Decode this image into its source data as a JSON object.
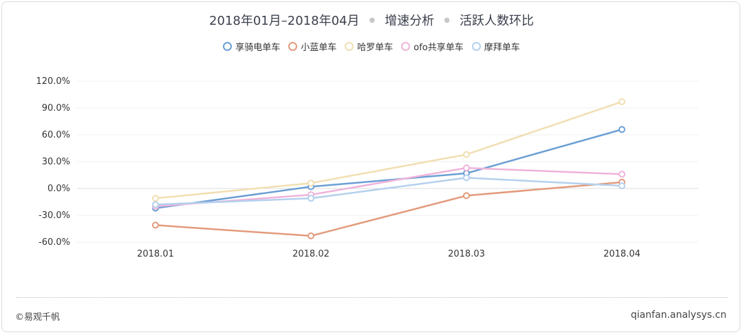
{
  "header": {
    "date_range": "2018年01月–2018年04月",
    "section": "增速分析",
    "metric": "活跃人数环比"
  },
  "footer": {
    "copyright": "©易观千帆",
    "site": "qianfan.analysys.cn"
  },
  "chart_data": {
    "type": "line",
    "title": "",
    "xlabel": "",
    "ylabel": "",
    "categories": [
      "2018.01",
      "2018.02",
      "2018.03",
      "2018.04"
    ],
    "ylim": [
      -60,
      120
    ],
    "yticks": [
      -60,
      -30,
      0,
      30,
      60,
      90,
      120
    ],
    "ytick_labels": [
      "-60.0%",
      "-30.0%",
      "0.0%",
      "30.0%",
      "60.0%",
      "90.0%",
      "120.0%"
    ],
    "grid": true,
    "legend_position": "top-center",
    "series": [
      {
        "name": "享骑电单车",
        "color": "#6b9fd4",
        "values": [
          -22,
          2,
          17,
          66
        ]
      },
      {
        "name": "小蓝单车",
        "color": "#e39a7b",
        "values": [
          -41,
          -53,
          -8,
          7
        ]
      },
      {
        "name": "哈罗单车",
        "color": "#f1dfb2",
        "values": [
          -11,
          6,
          38,
          97
        ]
      },
      {
        "name": "ofo共享单车",
        "color": "#efb3da",
        "values": [
          -20,
          -7,
          23,
          16
        ]
      },
      {
        "name": "摩拜单车",
        "color": "#b4d0ee",
        "values": [
          -18,
          -11,
          12,
          3
        ]
      }
    ]
  }
}
